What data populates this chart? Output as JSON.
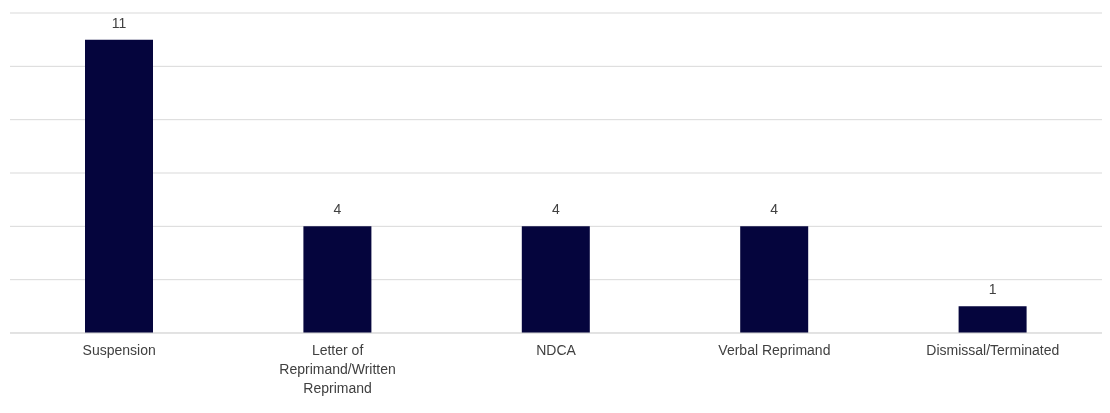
{
  "chart_data": {
    "type": "bar",
    "categories": [
      "Suspension",
      "Letter of Reprimand/Written Reprimand",
      "NDCA",
      "Verbal Reprimand",
      "Dismissal/Terminated"
    ],
    "values": [
      11,
      4,
      4,
      4,
      1
    ],
    "color": "#05053d",
    "data_labels": true,
    "grid": "y",
    "tick_labels": "x",
    "ylim": [
      0,
      12
    ],
    "yticks": [
      {
        "value": 0,
        "label": null
      },
      {
        "value": 2,
        "label": null
      },
      {
        "value": 4,
        "label": null
      },
      {
        "value": 6,
        "label": null
      },
      {
        "value": 8,
        "label": null
      },
      {
        "value": 10,
        "label": null
      },
      {
        "value": 12,
        "label": null
      }
    ]
  }
}
